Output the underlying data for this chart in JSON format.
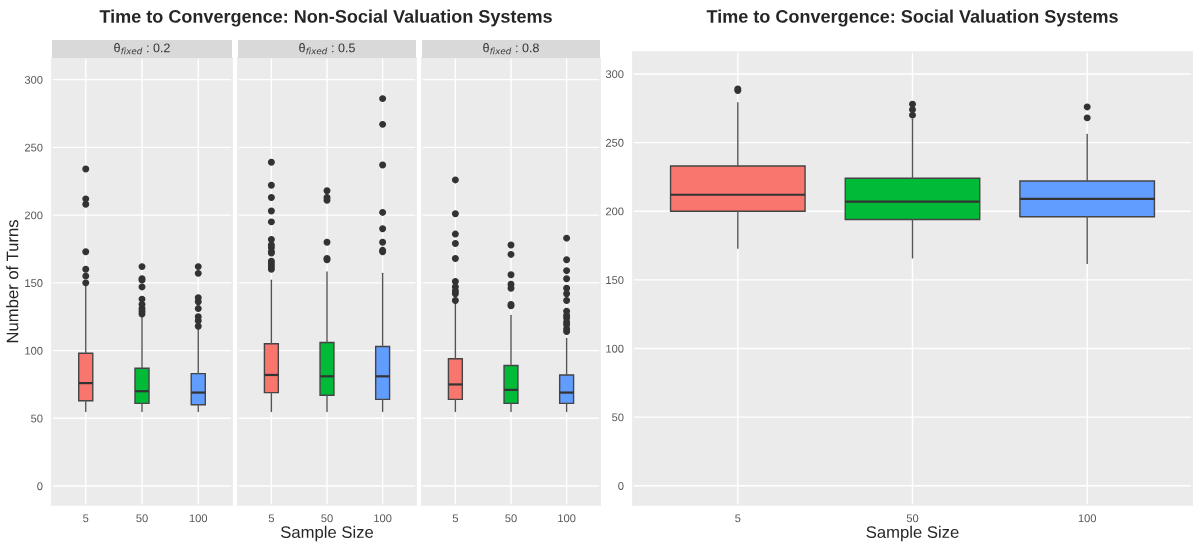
{
  "chart_data": [
    {
      "type": "box",
      "title": "Time to Convergence: Non-Social Valuation Systems",
      "subtitle": "θ$_{fixed}$ : 0.2",
      "ylabel": "Number of Turns",
      "categories": [
        "5",
        "50",
        "100"
      ],
      "colors": [
        "#f8766d",
        "#00ba38",
        "#619cff"
      ],
      "ylim": [
        -14,
        316
      ],
      "yticks": [
        0,
        50,
        100,
        150,
        200,
        250,
        300
      ],
      "grid": true,
      "boxes": [
        {
          "low": 55,
          "q1": 63,
          "median": 76,
          "q3": 98,
          "high": 149,
          "outliers": [
            150,
            155,
            160,
            173,
            208,
            212,
            234
          ]
        },
        {
          "low": 55,
          "q1": 61,
          "median": 70,
          "q3": 87,
          "high": 126,
          "outliers": [
            127,
            129,
            131,
            134,
            138,
            147,
            152,
            153,
            162
          ]
        },
        {
          "low": 55,
          "q1": 60,
          "median": 69,
          "q3": 83,
          "high": 116,
          "outliers": [
            118,
            122,
            125,
            131,
            136,
            139,
            157,
            162
          ]
        }
      ]
    },
    {
      "type": "box",
      "subtitle": "θ$_{fixed}$ : 0.5",
      "xlabel": "Sample Size",
      "categories": [
        "5",
        "50",
        "100"
      ],
      "colors": [
        "#f8766d",
        "#00ba38",
        "#619cff"
      ],
      "ylim": [
        -14,
        316
      ],
      "yticks": [
        0,
        50,
        100,
        150,
        200,
        250,
        300
      ],
      "grid": true,
      "tick_labels": "x",
      "boxes": [
        {
          "low": 55,
          "q1": 69,
          "median": 82,
          "q3": 105,
          "high": 152,
          "outliers": [
            160,
            162,
            164,
            166,
            172,
            173,
            176,
            178,
            182,
            195,
            203,
            213,
            222,
            239
          ]
        },
        {
          "low": 55,
          "q1": 67,
          "median": 81,
          "q3": 106,
          "high": 158,
          "outliers": [
            167,
            168,
            180,
            211,
            213,
            218
          ]
        },
        {
          "low": 55,
          "q1": 64,
          "median": 81,
          "q3": 103,
          "high": 157,
          "outliers": [
            173,
            174,
            180,
            190,
            202,
            237,
            267,
            286
          ]
        }
      ]
    },
    {
      "type": "box",
      "subtitle": "θ$_{fixed}$ : 0.8",
      "categories": [
        "5",
        "50",
        "100"
      ],
      "colors": [
        "#f8766d",
        "#00ba38",
        "#619cff"
      ],
      "ylim": [
        -14,
        316
      ],
      "yticks": [
        0,
        50,
        100,
        150,
        200,
        250,
        300
      ],
      "grid": true,
      "tick_labels": "x",
      "boxes": [
        {
          "low": 55,
          "q1": 64,
          "median": 75,
          "q3": 94,
          "high": 135,
          "outliers": [
            137,
            142,
            144,
            147,
            151,
            168,
            179,
            186,
            201,
            226
          ]
        },
        {
          "low": 55,
          "q1": 61,
          "median": 71,
          "q3": 89,
          "high": 126,
          "outliers": [
            133,
            134,
            146,
            149,
            156,
            171,
            178
          ]
        },
        {
          "low": 55,
          "q1": 61,
          "median": 69,
          "q3": 82,
          "high": 109,
          "outliers": [
            114,
            116,
            119,
            121,
            124,
            126,
            129,
            137,
            142,
            146,
            153,
            159,
            167,
            183
          ]
        }
      ]
    },
    {
      "type": "box",
      "title": "Time to Convergence: Social Valuation Systems",
      "xlabel": "Sample Size",
      "categories": [
        "5",
        "50",
        "100"
      ],
      "colors": [
        "#f8766d",
        "#00ba38",
        "#619cff"
      ],
      "ylim": [
        -14,
        316
      ],
      "yticks": [
        0,
        50,
        100,
        150,
        200,
        250,
        300
      ],
      "grid": true,
      "boxes": [
        {
          "low": 173,
          "q1": 200,
          "median": 212,
          "q3": 233,
          "high": 279,
          "outliers": [
            288,
            289
          ]
        },
        {
          "low": 166,
          "q1": 194,
          "median": 207,
          "q3": 224,
          "high": 267,
          "outliers": [
            270,
            274,
            278
          ]
        },
        {
          "low": 162,
          "q1": 196,
          "median": 209,
          "q3": 222,
          "high": 256,
          "outliers": [
            268,
            276
          ]
        }
      ]
    }
  ]
}
